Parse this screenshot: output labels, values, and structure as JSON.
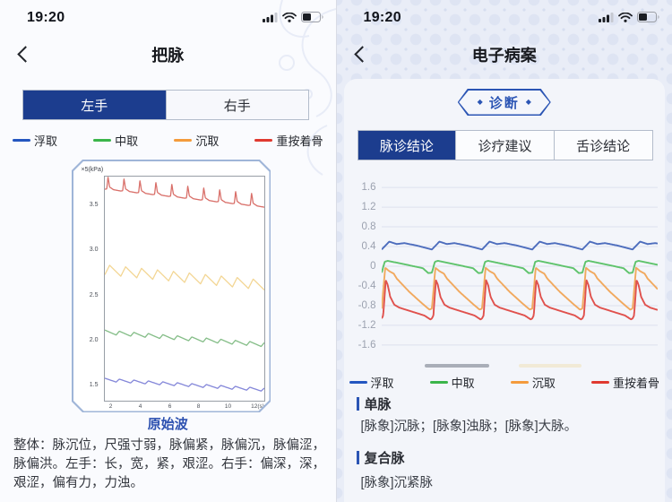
{
  "colors": {
    "accent_navy": "#1c3d8e",
    "badge_blue": "#2b55b4",
    "link_blue": "#2d51b0",
    "card_border": "#9fb5d8"
  },
  "left_screen": {
    "status_bar": {
      "time": "19:20",
      "icons": [
        "cellular-icon",
        "wifi-icon",
        "battery-icon"
      ]
    },
    "nav": {
      "title": "把脉",
      "back_icon": "chevron-left"
    },
    "hand_tabs": [
      {
        "label": "左手",
        "selected": true
      },
      {
        "label": "右手",
        "selected": false
      }
    ],
    "legend": [
      {
        "label": "浮取",
        "color": "#2456c0"
      },
      {
        "label": "中取",
        "color": "#3bb54a"
      },
      {
        "label": "沉取",
        "color": "#f49b3c"
      },
      {
        "label": "重按着骨",
        "color": "#e03a30"
      }
    ],
    "chart_caption": "原始波",
    "summary": "整体：脉沉位，尺强寸弱，脉偏紧，脉偏沉，脉偏涩，脉偏洪。左手：长，宽，紧，艰涩。右手：偏深，深，艰涩，偏有力，力浊。"
  },
  "right_screen": {
    "status_bar": {
      "time": "19:20",
      "icons": [
        "cellular-icon",
        "wifi-icon",
        "battery-icon"
      ]
    },
    "nav": {
      "title": "电子病案",
      "back_icon": "chevron-left"
    },
    "badge": {
      "label": "诊断",
      "diamond": "◆"
    },
    "tabs": [
      {
        "label": "脉诊结论",
        "selected": true
      },
      {
        "label": "诊疗建议",
        "selected": false
      },
      {
        "label": "舌诊结论",
        "selected": false
      }
    ],
    "legend": [
      {
        "label": "浮取",
        "color": "#2456c0"
      },
      {
        "label": "中取",
        "color": "#3bb54a"
      },
      {
        "label": "沉取",
        "color": "#f49b3c"
      },
      {
        "label": "重按着骨",
        "color": "#e03a30"
      }
    ],
    "sections": [
      {
        "title": "单脉",
        "content": "[脉象]沉脉；[脉象]浊脉；[脉象]大脉。"
      },
      {
        "title": "复合脉",
        "content": "[脉象]沉紧脉"
      }
    ]
  },
  "chart_data": [
    {
      "id": "raw-wave-chart",
      "type": "line",
      "title": "原始波",
      "unit_label": "×5(kPa)",
      "x_ticks": [
        "2",
        "4",
        "6",
        "8",
        "10",
        "12(s)"
      ],
      "y_ticks": [
        3.5,
        3.0,
        2.5,
        2.0,
        1.5
      ],
      "ylim": [
        1.33,
        3.82
      ],
      "grid": false,
      "legend_position": "top",
      "series": [
        {
          "name": "重按着骨",
          "color": "#d9706a",
          "cycles": 10,
          "base_start": 3.7,
          "base_end": 3.5,
          "keyframes": [
            [
              0,
              -0.02
            ],
            [
              0.12,
              -0.015
            ],
            [
              0.2,
              0.12
            ],
            [
              0.3,
              0.01
            ],
            [
              0.55,
              -0.015
            ],
            [
              1,
              -0.02
            ]
          ]
        },
        {
          "name": "沉取",
          "color": "#f3d694",
          "cycles": 10,
          "base_start": 2.78,
          "base_end": 2.61,
          "keyframes": [
            [
              0,
              -0.05
            ],
            [
              0.3,
              0.06
            ],
            [
              1,
              -0.05
            ]
          ]
        },
        {
          "name": "中取",
          "color": "#84bd87",
          "cycles": 11,
          "base_start": 2.09,
          "base_end": 1.95,
          "keyframes": [
            [
              0,
              0.025
            ],
            [
              0.78,
              -0.02
            ],
            [
              1,
              0.025
            ]
          ]
        },
        {
          "name": "浮取",
          "color": "#8487d9",
          "cycles": 11,
          "base_start": 1.56,
          "base_end": 1.45,
          "keyframes": [
            [
              0,
              0.02
            ],
            [
              0.78,
              -0.015
            ],
            [
              1,
              0.02
            ]
          ]
        }
      ]
    },
    {
      "id": "pulse-wave-chart",
      "type": "line",
      "y_ticks": [
        1.6,
        1.2,
        0.8,
        0.4,
        0,
        -0.4,
        -0.8,
        -1.2,
        -1.6
      ],
      "ylim": [
        -1.82,
        1.82
      ],
      "grid": true,
      "legend_position": "bottom",
      "scrollbar": {
        "thumb_color": "#a9aeb8",
        "track_color": "#f1ead6"
      },
      "series": [
        {
          "name": "浮取",
          "color": "#4d6dbd",
          "cycles": 5.5,
          "base_start": 0,
          "base_end": 0,
          "keyframes": [
            [
              0,
              0.34
            ],
            [
              0.15,
              0.5
            ],
            [
              0.3,
              0.45
            ],
            [
              0.45,
              0.47
            ],
            [
              0.7,
              0.42
            ],
            [
              1,
              0.34
            ]
          ]
        },
        {
          "name": "中取",
          "color": "#5ec36b",
          "cycles": 5.5,
          "base_start": 0,
          "base_end": 0,
          "keyframes": [
            [
              0,
              -0.13
            ],
            [
              0.06,
              0.09
            ],
            [
              0.12,
              0.11
            ],
            [
              0.5,
              0.03
            ],
            [
              0.82,
              -0.04
            ],
            [
              0.93,
              -0.14
            ],
            [
              1,
              -0.13
            ]
          ]
        },
        {
          "name": "沉取",
          "color": "#f1a95e",
          "cycles": 5.5,
          "base_start": 0,
          "base_end": 0,
          "keyframes": [
            [
              0,
              -0.86
            ],
            [
              0.07,
              -0.03
            ],
            [
              0.15,
              -0.1
            ],
            [
              0.24,
              -0.15
            ],
            [
              0.3,
              -0.25
            ],
            [
              0.55,
              -0.52
            ],
            [
              0.8,
              -0.75
            ],
            [
              0.95,
              -0.88
            ],
            [
              1,
              -0.86
            ]
          ]
        },
        {
          "name": "重按着骨",
          "color": "#e0514d",
          "cycles": 5.5,
          "base_start": 0,
          "base_end": 0,
          "keyframes": [
            [
              0,
              -1.06
            ],
            [
              0.03,
              -1.0
            ],
            [
              0.08,
              -0.28
            ],
            [
              0.12,
              -0.38
            ],
            [
              0.17,
              -0.62
            ],
            [
              0.25,
              -0.78
            ],
            [
              0.35,
              -0.84
            ],
            [
              0.6,
              -0.92
            ],
            [
              0.85,
              -1.0
            ],
            [
              0.97,
              -1.08
            ],
            [
              1,
              -1.06
            ]
          ]
        }
      ]
    }
  ]
}
